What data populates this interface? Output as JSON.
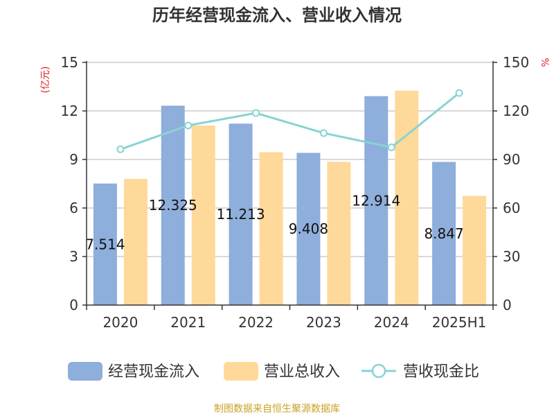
{
  "chart_data": {
    "type": "bar",
    "title": "历年经营现金流入、营业收入情况",
    "categories": [
      "2020",
      "2021",
      "2022",
      "2023",
      "2024",
      "2025H1"
    ],
    "y_left": {
      "unit": "(亿元)",
      "range": [
        0,
        15
      ],
      "ticks": [
        "0",
        "3",
        "6",
        "9",
        "12",
        "15"
      ]
    },
    "y_right": {
      "unit": "%",
      "range": [
        0,
        150
      ],
      "ticks": [
        "0",
        "30",
        "60",
        "90",
        "120",
        "150"
      ]
    },
    "grid": true,
    "legend_position": "bottom",
    "series": [
      {
        "name": "经营现金流入",
        "kind": "bar",
        "axis": "left",
        "color": "#8eaedb",
        "values": [
          7.514,
          12.325,
          11.213,
          9.408,
          12.914,
          8.847
        ],
        "labels": [
          "7.514",
          "12.325",
          "11.213",
          "9.408",
          "12.914",
          "8.847"
        ]
      },
      {
        "name": "营业总收入",
        "kind": "bar",
        "axis": "left",
        "color": "#ffd999",
        "values": [
          7.8,
          11.1,
          9.45,
          8.85,
          13.25,
          6.75
        ]
      },
      {
        "name": "营收现金比",
        "kind": "line",
        "axis": "right",
        "color": "#88d3d3",
        "values": [
          96.3,
          111.0,
          118.7,
          106.3,
          97.5,
          131.1
        ]
      }
    ],
    "source": "制图数据来自恒生聚源数据库"
  }
}
